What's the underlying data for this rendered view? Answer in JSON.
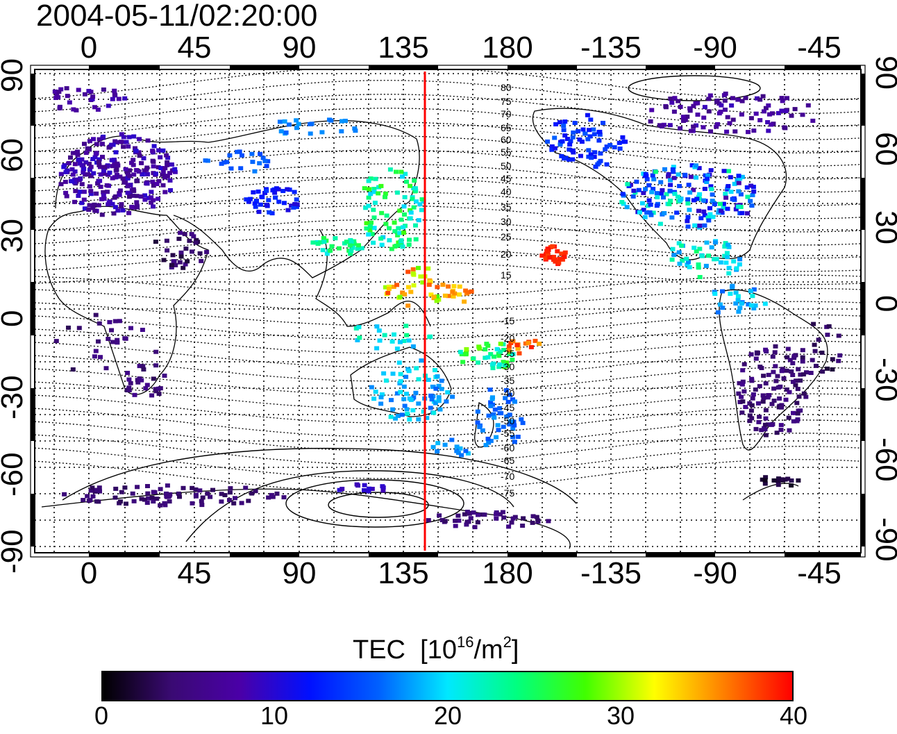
{
  "timestamp": "2004-05-11/02:20:00",
  "longitude_ticks": [
    "0",
    "45",
    "90",
    "135",
    "180",
    "-135",
    "-90",
    "-45"
  ],
  "latitude_ticks": [
    "90",
    "60",
    "30",
    "0",
    "-30",
    "-60",
    "-90"
  ],
  "contour_labels_north": [
    "80",
    "75",
    "70",
    "65",
    "60",
    "55",
    "50",
    "45",
    "40",
    "35",
    "30",
    "25",
    "20",
    "15"
  ],
  "contour_labels_south": [
    "-15",
    "-20",
    "-25",
    "-30",
    "-35",
    "-40",
    "-45",
    "-50",
    "-55",
    "-60",
    "-65",
    "-70",
    "-75"
  ],
  "legend": {
    "title": "TEC",
    "unit_prefix": "[10",
    "unit_exp1": "16",
    "unit_mid": "/m",
    "unit_exp2": "2",
    "unit_suffix": "]",
    "ticks": [
      "0",
      "10",
      "20",
      "30",
      "40"
    ],
    "min": 0,
    "max": 40,
    "colors": [
      "#000000",
      "#3a0a73",
      "#4a00a8",
      "#0010ff",
      "#0060ff",
      "#00e8ff",
      "#00ff80",
      "#40ff00",
      "#ffff00",
      "#ff8000",
      "#ff0000"
    ]
  },
  "marker_longitude": "145",
  "marker_color": "#ff0000"
}
